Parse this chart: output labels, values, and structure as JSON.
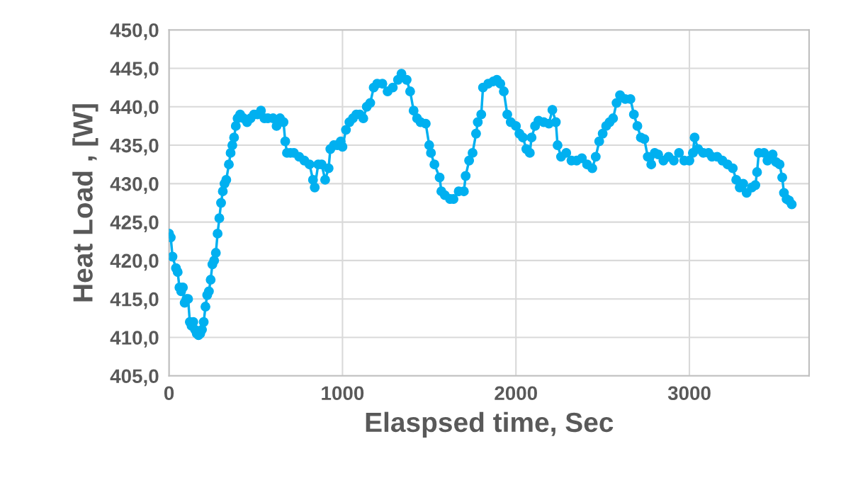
{
  "chart_data": {
    "type": "line",
    "xlabel": "Elaspsed time, Sec",
    "ylabel": "Heat Load , [W]",
    "marker": "circle",
    "line_style": "solid",
    "grid": true,
    "legend": false,
    "xlim": [
      0,
      3690
    ],
    "xticks": [
      0,
      1000,
      2000,
      3000
    ],
    "ylim": [
      405,
      450
    ],
    "yticks": [
      {
        "value": 405,
        "label": "405,0"
      },
      {
        "value": 410,
        "label": "410,0"
      },
      {
        "value": 415,
        "label": "415,0"
      },
      {
        "value": 420,
        "label": "420,0"
      },
      {
        "value": 425,
        "label": "425,0"
      },
      {
        "value": 430,
        "label": "430,0"
      },
      {
        "value": 435,
        "label": "435,0"
      },
      {
        "value": 440,
        "label": "440,0"
      },
      {
        "value": 445,
        "label": "445,0"
      },
      {
        "value": 450,
        "label": "450,0"
      }
    ],
    "series": [
      {
        "color": "#00b0f0",
        "x": [
          0,
          10,
          20,
          40,
          50,
          60,
          70,
          80,
          90,
          100,
          110,
          120,
          130,
          140,
          150,
          160,
          170,
          180,
          190,
          200,
          210,
          220,
          230,
          240,
          250,
          260,
          270,
          280,
          290,
          300,
          310,
          320,
          330,
          345,
          355,
          365,
          375,
          385,
          395,
          410,
          430,
          450,
          470,
          490,
          510,
          530,
          550,
          570,
          600,
          620,
          640,
          660,
          670,
          680,
          700,
          720,
          750,
          780,
          810,
          830,
          840,
          860,
          880,
          900,
          920,
          930,
          950,
          970,
          990,
          1000,
          1020,
          1040,
          1060,
          1080,
          1100,
          1120,
          1140,
          1160,
          1180,
          1200,
          1230,
          1260,
          1290,
          1320,
          1340,
          1370,
          1390,
          1410,
          1430,
          1450,
          1480,
          1500,
          1510,
          1530,
          1560,
          1570,
          1590,
          1620,
          1640,
          1670,
          1700,
          1710,
          1730,
          1750,
          1770,
          1780,
          1800,
          1810,
          1840,
          1870,
          1890,
          1910,
          1930,
          1950,
          1970,
          2000,
          2020,
          2040,
          2060,
          2080,
          2090,
          2110,
          2130,
          2160,
          2190,
          2210,
          2230,
          2240,
          2260,
          2290,
          2320,
          2350,
          2380,
          2410,
          2440,
          2460,
          2480,
          2500,
          2520,
          2540,
          2560,
          2580,
          2600,
          2630,
          2660,
          2680,
          2700,
          2720,
          2740,
          2760,
          2780,
          2800,
          2820,
          2850,
          2880,
          2910,
          2940,
          2970,
          3000,
          3020,
          3030,
          3050,
          3080,
          3110,
          3130,
          3160,
          3190,
          3220,
          3250,
          3270,
          3290,
          3310,
          3330,
          3360,
          3380,
          3390,
          3400,
          3430,
          3450,
          3480,
          3500,
          3520,
          3535,
          3545,
          3560,
          3575,
          3590
        ],
        "values": [
          423.5,
          423,
          420.5,
          419,
          418.5,
          416.5,
          416,
          416.5,
          414.5,
          415,
          415,
          412,
          411.5,
          412,
          411,
          410.5,
          410.3,
          410.5,
          411,
          412,
          414,
          415.5,
          416,
          417.5,
          419.5,
          420,
          421,
          423.5,
          425.5,
          427.5,
          429,
          430,
          430.5,
          432.5,
          434,
          435,
          436,
          437.5,
          438.5,
          439,
          438.5,
          438,
          438.5,
          439,
          439,
          439.5,
          438.5,
          438.5,
          438.5,
          437.5,
          438.5,
          438,
          435.5,
          434,
          434,
          434,
          433.5,
          433,
          432.5,
          430.5,
          429.5,
          432.5,
          432.5,
          430.5,
          432,
          434.5,
          435,
          435,
          435.5,
          434.8,
          437,
          438,
          438.5,
          439,
          439,
          438.5,
          440,
          440.5,
          442.5,
          443,
          443,
          442,
          442.5,
          443.5,
          444.3,
          443.5,
          442,
          439.5,
          438.5,
          438,
          437.8,
          435,
          434,
          432.5,
          430.8,
          429,
          428.5,
          428,
          428,
          429,
          429,
          431,
          433,
          434,
          436.5,
          438,
          439,
          442.5,
          443,
          443.3,
          443.5,
          443,
          442,
          439,
          438,
          437.5,
          436.5,
          436,
          434.5,
          434,
          436,
          437.5,
          438.2,
          438,
          437.8,
          439.6,
          438,
          435,
          433.5,
          434,
          433,
          433,
          433.3,
          432.5,
          432,
          433.5,
          435.5,
          436.5,
          437.5,
          438,
          438.5,
          440.5,
          441.5,
          441,
          441,
          439,
          437.5,
          436,
          435.8,
          433.5,
          432.5,
          434,
          433.8,
          433,
          433.5,
          433,
          434,
          433,
          433,
          434,
          436,
          434.5,
          434,
          434,
          433.5,
          433.5,
          433,
          432.5,
          432,
          430.5,
          429.5,
          430,
          428.8,
          429.5,
          429.8,
          431.5,
          434,
          434,
          433,
          433.8,
          432.8,
          432.5,
          430.8,
          428.8,
          428,
          427.8,
          427.3
        ]
      }
    ]
  }
}
